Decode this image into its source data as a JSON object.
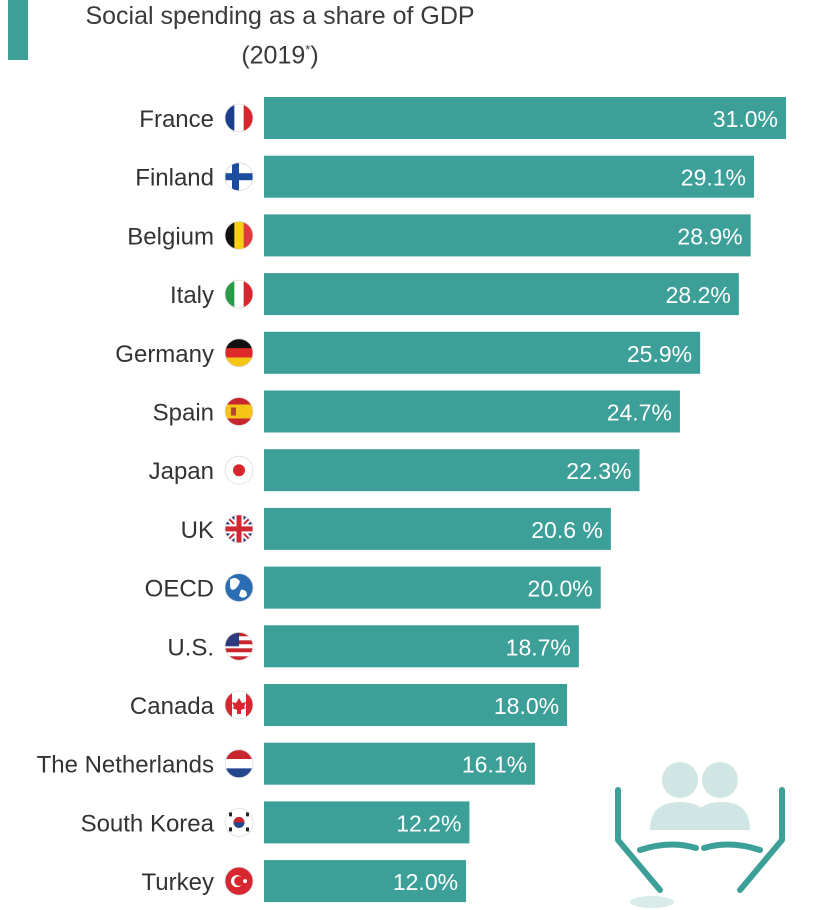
{
  "title": "Social spending as a share of GDP",
  "subtitle_year": "(2019",
  "subtitle_mark": "*",
  "subtitle_close": ")",
  "colors": {
    "bar": "#3c9f98",
    "accent": "#3c9f98",
    "label": "#333333",
    "value": "#ffffff"
  },
  "chart_data": {
    "type": "bar",
    "orientation": "horizontal",
    "title": "Social spending as a share of GDP (2019*)",
    "xlabel": "",
    "ylabel": "",
    "xlim": [
      0,
      31.0
    ],
    "grid": false,
    "categories": [
      "France",
      "Finland",
      "Belgium",
      "Italy",
      "Germany",
      "Spain",
      "Japan",
      "UK",
      "OECD",
      "U.S.",
      "Canada",
      "The Netherlands",
      "South Korea",
      "Turkey"
    ],
    "values": [
      31.0,
      29.1,
      28.9,
      28.2,
      25.9,
      24.7,
      22.3,
      20.6,
      20.0,
      18.7,
      18.0,
      16.1,
      12.2,
      12.0
    ],
    "data_labels": [
      "31.0%",
      "29.1%",
      "28.9%",
      "28.2%",
      "25.9%",
      "24.7%",
      "22.3%",
      "20.6 %",
      "20.0%",
      "18.7%",
      "18.0%",
      "16.1%",
      "12.2%",
      "12.0%"
    ],
    "icons": [
      "flag-france-icon",
      "flag-finland-icon",
      "flag-belgium-icon",
      "flag-italy-icon",
      "flag-germany-icon",
      "flag-spain-icon",
      "flag-japan-icon",
      "flag-uk-icon",
      "globe-icon",
      "flag-us-icon",
      "flag-canada-icon",
      "flag-netherlands-icon",
      "flag-south-korea-icon",
      "flag-turkey-icon"
    ]
  }
}
